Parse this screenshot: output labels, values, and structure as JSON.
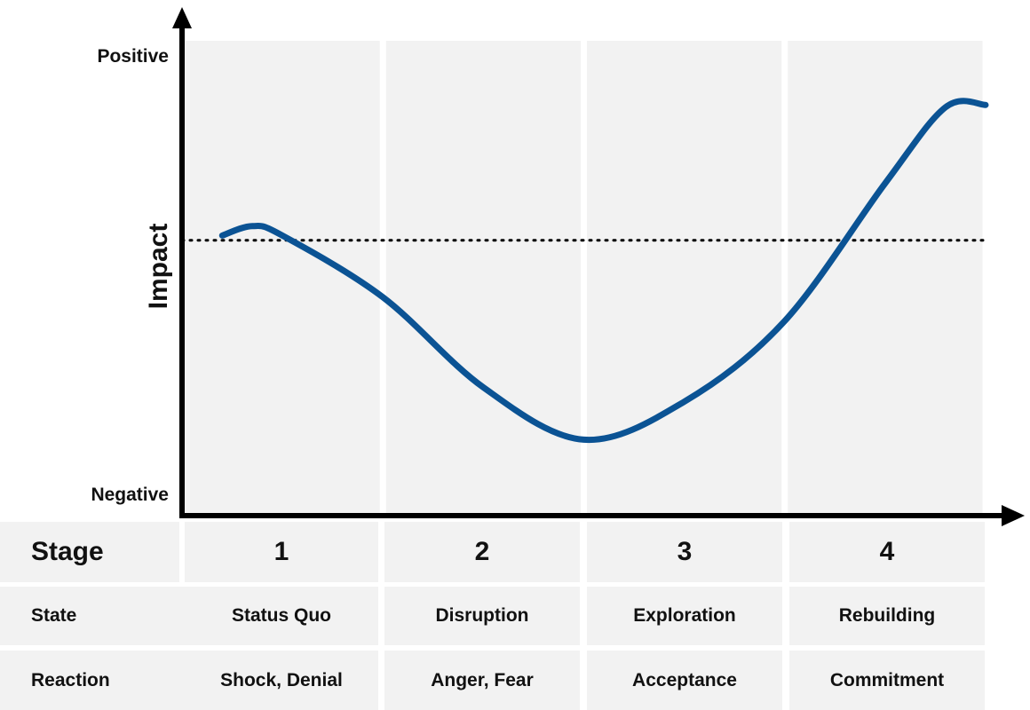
{
  "colors": {
    "curve": "#0b5394",
    "panel": "#f2f2f2",
    "axis": "#000000"
  },
  "chart_data": {
    "type": "line",
    "ylabel": "Impact",
    "y_top_label": "Positive",
    "y_bottom_label": "Negative",
    "ylim": [
      0,
      100
    ],
    "xlim": [
      0,
      4
    ],
    "baseline": 58,
    "series": [
      {
        "x": [
          0.2,
          0.35,
          0.5,
          1.0,
          1.5,
          2.0,
          2.5,
          3.0,
          3.5,
          3.8,
          4.0
        ],
        "y": [
          59,
          61,
          59,
          46,
          27,
          16,
          24,
          41,
          70,
          86,
          86.5
        ]
      }
    ]
  },
  "table": {
    "stage_label": "Stage",
    "stages": [
      "1",
      "2",
      "3",
      "4"
    ],
    "rows": [
      {
        "label": "State",
        "values": [
          "Status Quo",
          "Disruption",
          "Exploration",
          "Rebuilding"
        ]
      },
      {
        "label": "Reaction",
        "values": [
          "Shock, Denial",
          "Anger, Fear",
          "Acceptance",
          "Commitment"
        ]
      }
    ]
  }
}
